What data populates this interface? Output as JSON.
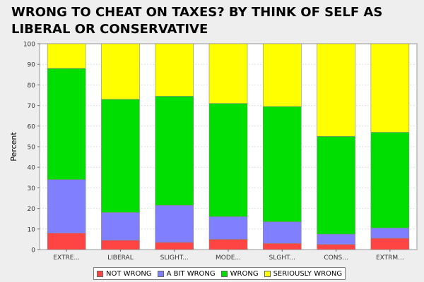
{
  "chart_data": {
    "type": "bar",
    "stacked": true,
    "title": "WRONG TO CHEAT ON TAXES? BY THINK OF SELF AS LIBERAL OR CONSERVATIVE",
    "ylabel": "Percent",
    "xlabel": "",
    "ylim": [
      0,
      100
    ],
    "yticks": [
      0,
      10,
      20,
      30,
      40,
      50,
      60,
      70,
      80,
      90,
      100
    ],
    "grid": true,
    "legend_position": "bottom",
    "categories": [
      "EXTRE...",
      "LIBERAL",
      "SLIGHT...",
      "MODE...",
      "SLGHT...",
      "CONS...",
      "EXTRM..."
    ],
    "series": [
      {
        "name": "NOT WRONG",
        "color": "#ff4444",
        "values": [
          8,
          4.5,
          3.5,
          5,
          3,
          2.5,
          5.5
        ]
      },
      {
        "name": "A BIT WRONG",
        "color": "#8080ff",
        "values": [
          26,
          13.5,
          18,
          11,
          10.5,
          5,
          5
        ]
      },
      {
        "name": "WRONG",
        "color": "#00dd00",
        "values": [
          54,
          55,
          53,
          55,
          56,
          47.5,
          46.5
        ]
      },
      {
        "name": "SERIOUSLY WRONG",
        "color": "#ffff00",
        "values": [
          12,
          27,
          25.5,
          29,
          30.5,
          45,
          43
        ]
      }
    ]
  }
}
